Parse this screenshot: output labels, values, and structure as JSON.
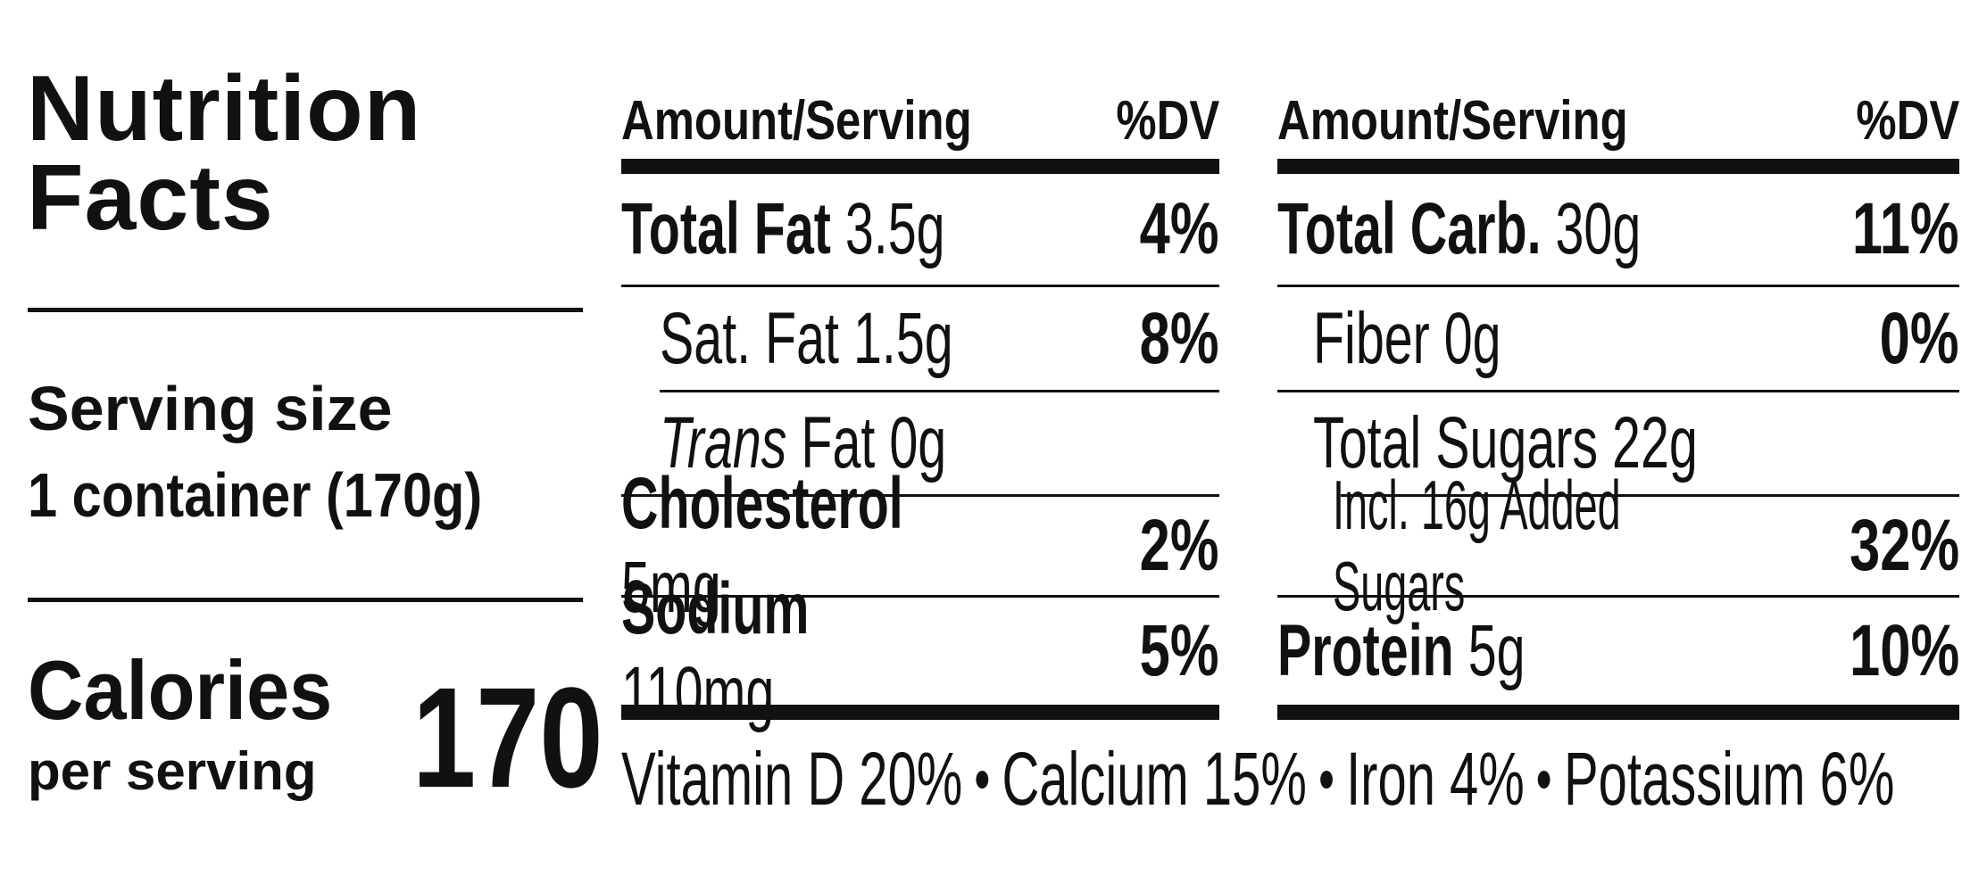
{
  "left": {
    "title": [
      "Nutrition",
      "Facts"
    ],
    "serving_label": "Serving size",
    "serving_value": "1 container (170g)",
    "calories_label": "Calories",
    "calories_sub": "per serving",
    "calories_value": "170"
  },
  "tables": [
    {
      "header": [
        "Amount/Serving",
        "%DV"
      ],
      "rows": [
        {
          "name": "Total Fat",
          "amount": "3.5g",
          "dv": "4%"
        },
        {
          "name": "Sat. Fat",
          "amount": "1.5g",
          "dv": "8%"
        },
        {
          "italic": "Trans",
          "name": "Fat",
          "amount": "0g"
        },
        {
          "name": "Cholesterol",
          "amount": "5mg",
          "dv": "2%"
        },
        {
          "name": "Sodium",
          "amount": "110mg",
          "dv": "5%"
        }
      ]
    },
    {
      "header": [
        "Amount/Serving",
        "%DV"
      ],
      "rows": [
        {
          "name": "Total Carb.",
          "amount": "30g",
          "dv": "11%"
        },
        {
          "name": "Fiber",
          "amount": "0g",
          "dv": "0%"
        },
        {
          "name": "Total Sugars",
          "amount": "22g"
        },
        {
          "name": "Incl. 16g Added Sugars",
          "dv": "32%"
        },
        {
          "name": "Protein",
          "amount": "5g",
          "dv": "10%"
        }
      ]
    }
  ],
  "footer": [
    "Vitamin D 20%",
    "Calcium 15%",
    "Iron 4%",
    "Potassium 6%"
  ]
}
